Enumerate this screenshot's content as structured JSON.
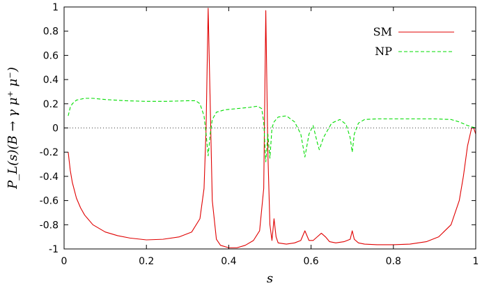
{
  "chart_data": {
    "type": "line",
    "title": "",
    "xlabel": "s",
    "ylabel": "P_L(s)(B → γ μ⁺ μ⁻)",
    "xlim": [
      0,
      1
    ],
    "ylim": [
      -1,
      1
    ],
    "x_ticks": [
      0,
      0.2,
      0.4,
      0.6,
      0.8,
      1
    ],
    "x_tick_labels": [
      "0",
      "0.2",
      "0.4",
      "0.6",
      "0.8",
      "1"
    ],
    "y_ticks": [
      -1,
      -0.8,
      -0.6,
      -0.4,
      -0.2,
      0,
      0.2,
      0.4,
      0.6,
      0.8,
      1
    ],
    "y_tick_labels": [
      "-1",
      "-0.8",
      "-0.6",
      "-0.4",
      "-0.2",
      "0",
      "0.2",
      "0.4",
      "0.6",
      "0.8",
      "1"
    ],
    "grid": false,
    "zero_line": true,
    "legend_position": "top-right",
    "series": [
      {
        "name": "SM",
        "color": "#e00000",
        "style": "solid",
        "x": [
          0.01,
          0.015,
          0.02,
          0.03,
          0.04,
          0.05,
          0.07,
          0.1,
          0.13,
          0.16,
          0.2,
          0.24,
          0.28,
          0.31,
          0.33,
          0.34,
          0.345,
          0.35,
          0.355,
          0.36,
          0.37,
          0.38,
          0.4,
          0.42,
          0.44,
          0.46,
          0.475,
          0.485,
          0.49,
          0.495,
          0.5,
          0.505,
          0.51,
          0.515,
          0.52,
          0.54,
          0.56,
          0.575,
          0.585,
          0.595,
          0.605,
          0.615,
          0.625,
          0.635,
          0.645,
          0.66,
          0.68,
          0.695,
          0.7,
          0.705,
          0.715,
          0.73,
          0.76,
          0.8,
          0.84,
          0.88,
          0.91,
          0.94,
          0.96,
          0.97,
          0.98,
          0.99,
          0.995,
          1.0
        ],
        "y": [
          -0.2,
          -0.35,
          -0.45,
          -0.58,
          -0.66,
          -0.72,
          -0.8,
          -0.86,
          -0.89,
          -0.91,
          -0.925,
          -0.92,
          -0.9,
          -0.86,
          -0.75,
          -0.5,
          0.0,
          0.99,
          0.2,
          -0.6,
          -0.92,
          -0.97,
          -0.99,
          -0.99,
          -0.97,
          -0.93,
          -0.85,
          -0.5,
          0.97,
          -0.2,
          -0.8,
          -0.93,
          -0.75,
          -0.9,
          -0.95,
          -0.96,
          -0.95,
          -0.93,
          -0.85,
          -0.93,
          -0.93,
          -0.9,
          -0.87,
          -0.9,
          -0.94,
          -0.95,
          -0.94,
          -0.92,
          -0.85,
          -0.92,
          -0.95,
          -0.96,
          -0.965,
          -0.965,
          -0.96,
          -0.94,
          -0.9,
          -0.8,
          -0.6,
          -0.4,
          -0.15,
          0.0,
          0.0,
          -0.05
        ]
      },
      {
        "name": "NP",
        "color": "#00dd00",
        "style": "dashed",
        "x": [
          0.01,
          0.015,
          0.02,
          0.03,
          0.05,
          0.07,
          0.1,
          0.15,
          0.2,
          0.25,
          0.3,
          0.32,
          0.33,
          0.34,
          0.345,
          0.35,
          0.355,
          0.36,
          0.37,
          0.39,
          0.42,
          0.45,
          0.47,
          0.48,
          0.485,
          0.49,
          0.495,
          0.5,
          0.505,
          0.51,
          0.52,
          0.54,
          0.56,
          0.575,
          0.585,
          0.595,
          0.605,
          0.615,
          0.62,
          0.63,
          0.65,
          0.67,
          0.685,
          0.695,
          0.7,
          0.705,
          0.715,
          0.73,
          0.76,
          0.8,
          0.85,
          0.9,
          0.94,
          0.96,
          0.98,
          0.99,
          1.0
        ],
        "y": [
          0.1,
          0.17,
          0.2,
          0.23,
          0.245,
          0.245,
          0.235,
          0.225,
          0.22,
          0.22,
          0.225,
          0.225,
          0.2,
          0.1,
          -0.05,
          -0.23,
          -0.05,
          0.07,
          0.13,
          0.15,
          0.16,
          0.17,
          0.18,
          0.16,
          0.05,
          -0.28,
          -0.05,
          -0.25,
          0.0,
          0.05,
          0.09,
          0.1,
          0.05,
          -0.05,
          -0.24,
          -0.05,
          0.02,
          -0.12,
          -0.18,
          -0.08,
          0.04,
          0.07,
          0.03,
          -0.08,
          -0.2,
          -0.05,
          0.04,
          0.07,
          0.075,
          0.075,
          0.075,
          0.075,
          0.07,
          0.05,
          0.02,
          0.01,
          0.0
        ]
      }
    ]
  }
}
